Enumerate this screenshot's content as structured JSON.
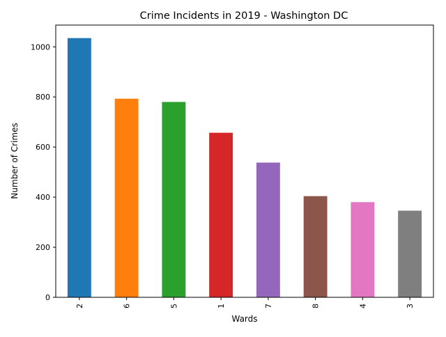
{
  "chart_data": {
    "type": "bar",
    "title": "Crime Incidents in 2019 - Washington DC",
    "xlabel": "Wards",
    "ylabel": "Number of Crimes",
    "categories": [
      "2",
      "6",
      "5",
      "1",
      "7",
      "8",
      "4",
      "3"
    ],
    "values": [
      1035,
      793,
      780,
      657,
      538,
      404,
      380,
      346
    ],
    "colors": [
      "#1f77b4",
      "#ff7f0e",
      "#2ca02c",
      "#d62728",
      "#9467bd",
      "#8c564b",
      "#e377c2",
      "#7f7f7f"
    ],
    "ylim": [
      0,
      1087
    ],
    "yticks": [
      0,
      200,
      400,
      600,
      800,
      1000
    ],
    "grid": false,
    "legend": "none"
  }
}
